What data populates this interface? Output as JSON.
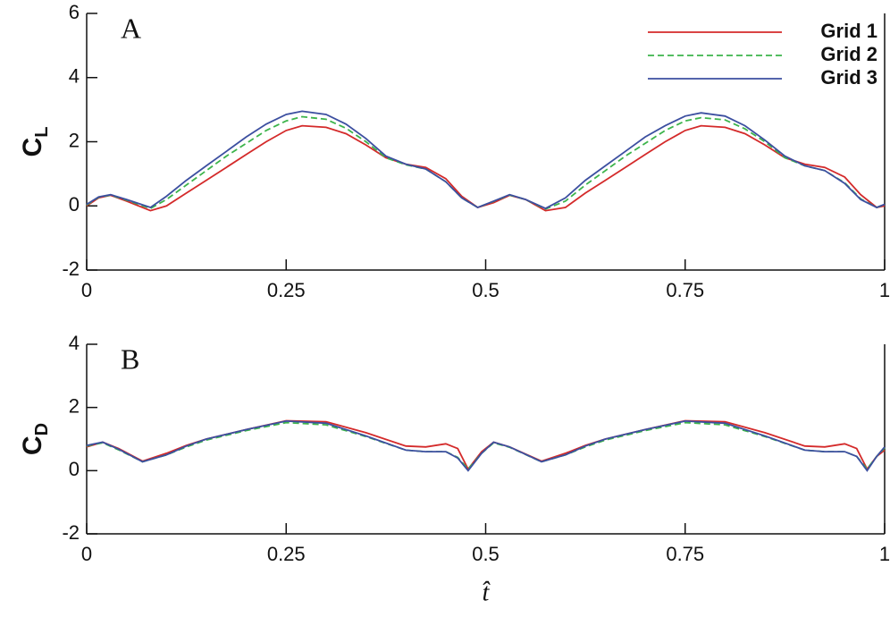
{
  "chart_data": [
    {
      "type": "line",
      "panel_label": "A",
      "ylabel": "C",
      "ylabel_sub": "L",
      "legend": "upper right",
      "xlim": [
        0,
        1
      ],
      "ylim": [
        -2,
        6
      ],
      "xticks": [
        0,
        0.25,
        0.5,
        0.75,
        1
      ],
      "yticks": [
        -2,
        0,
        2,
        4,
        6
      ],
      "x": [
        0,
        0.015,
        0.03,
        0.05,
        0.08,
        0.1,
        0.125,
        0.15,
        0.175,
        0.2,
        0.225,
        0.25,
        0.27,
        0.3,
        0.325,
        0.35,
        0.375,
        0.4,
        0.425,
        0.45,
        0.47,
        0.49,
        0.51,
        0.53,
        0.55,
        0.575,
        0.6,
        0.625,
        0.65,
        0.675,
        0.7,
        0.725,
        0.75,
        0.77,
        0.8,
        0.825,
        0.85,
        0.875,
        0.9,
        0.925,
        0.95,
        0.97,
        0.99,
        1
      ],
      "series": [
        {
          "name": "Grid 1",
          "color": "#d42a2a",
          "style": "solid",
          "values": [
            0,
            0.25,
            0.33,
            0.15,
            -0.15,
            0,
            0.4,
            0.8,
            1.2,
            1.6,
            2,
            2.35,
            2.5,
            2.45,
            2.25,
            1.9,
            1.5,
            1.3,
            1.2,
            0.85,
            0.3,
            -0.05,
            0.1,
            0.33,
            0.2,
            -0.15,
            -0.05,
            0.4,
            0.8,
            1.2,
            1.6,
            2,
            2.35,
            2.5,
            2.45,
            2.25,
            1.9,
            1.5,
            1.3,
            1.2,
            0.9,
            0.35,
            -0.05,
            0
          ]
        },
        {
          "name": "Grid 2",
          "color": "#3cb44b",
          "style": "dashed",
          "values": [
            0.03,
            0.27,
            0.34,
            0.18,
            -0.08,
            0.2,
            0.65,
            1.1,
            1.55,
            1.95,
            2.35,
            2.65,
            2.78,
            2.7,
            2.42,
            2,
            1.5,
            1.28,
            1.15,
            0.75,
            0.25,
            -0.05,
            0.14,
            0.34,
            0.2,
            -0.1,
            0.15,
            0.65,
            1.1,
            1.55,
            1.95,
            2.35,
            2.65,
            2.75,
            2.68,
            2.4,
            2,
            1.5,
            1.25,
            1.1,
            0.72,
            0.22,
            -0.05,
            0.04
          ]
        },
        {
          "name": "Grid 3",
          "color": "#3c4fa0",
          "style": "solid",
          "values": [
            0.05,
            0.28,
            0.35,
            0.2,
            -0.05,
            0.3,
            0.8,
            1.25,
            1.7,
            2.15,
            2.55,
            2.85,
            2.95,
            2.85,
            2.55,
            2.1,
            1.55,
            1.3,
            1.15,
            0.75,
            0.25,
            -0.05,
            0.15,
            0.35,
            0.2,
            -0.08,
            0.25,
            0.8,
            1.25,
            1.7,
            2.15,
            2.5,
            2.8,
            2.9,
            2.8,
            2.5,
            2.05,
            1.55,
            1.25,
            1.1,
            0.7,
            0.2,
            -0.05,
            0.05
          ]
        }
      ]
    },
    {
      "type": "line",
      "panel_label": "B",
      "ylabel": "C",
      "ylabel_sub": "D",
      "xlabel": "t̂",
      "xlim": [
        0,
        1
      ],
      "ylim": [
        -2,
        4
      ],
      "xticks": [
        0,
        0.25,
        0.5,
        0.75,
        1
      ],
      "yticks": [
        -2,
        0,
        2,
        4
      ],
      "x": [
        0,
        0.02,
        0.04,
        0.07,
        0.1,
        0.125,
        0.15,
        0.2,
        0.25,
        0.3,
        0.35,
        0.4,
        0.425,
        0.45,
        0.465,
        0.478,
        0.495,
        0.51,
        0.53,
        0.57,
        0.6,
        0.625,
        0.65,
        0.7,
        0.75,
        0.8,
        0.85,
        0.9,
        0.925,
        0.95,
        0.965,
        0.978,
        0.99,
        1
      ],
      "series": [
        {
          "color": "#d42a2a",
          "style": "solid",
          "values": [
            0.75,
            0.9,
            0.7,
            0.3,
            0.55,
            0.8,
            1,
            1.3,
            1.58,
            1.55,
            1.2,
            0.78,
            0.75,
            0.85,
            0.7,
            0.05,
            0.6,
            0.9,
            0.75,
            0.3,
            0.55,
            0.8,
            1,
            1.3,
            1.58,
            1.55,
            1.2,
            0.78,
            0.75,
            0.85,
            0.7,
            0.05,
            0.45,
            0.65
          ]
        },
        {
          "color": "#3cb44b",
          "style": "dashed",
          "values": [
            0.78,
            0.88,
            0.66,
            0.28,
            0.5,
            0.75,
            0.97,
            1.27,
            1.52,
            1.45,
            1.08,
            0.65,
            0.6,
            0.6,
            0.42,
            0.05,
            0.55,
            0.88,
            0.74,
            0.28,
            0.5,
            0.75,
            0.97,
            1.27,
            1.52,
            1.45,
            1.08,
            0.65,
            0.6,
            0.6,
            0.45,
            0.05,
            0.45,
            0.72
          ]
        },
        {
          "color": "#3c4fa0",
          "style": "solid",
          "values": [
            0.8,
            0.9,
            0.68,
            0.28,
            0.5,
            0.78,
            1,
            1.3,
            1.57,
            1.5,
            1.1,
            0.65,
            0.6,
            0.6,
            0.4,
            0,
            0.55,
            0.9,
            0.75,
            0.28,
            0.5,
            0.78,
            1,
            1.3,
            1.57,
            1.5,
            1.1,
            0.65,
            0.6,
            0.6,
            0.45,
            0,
            0.45,
            0.75
          ]
        }
      ]
    }
  ]
}
